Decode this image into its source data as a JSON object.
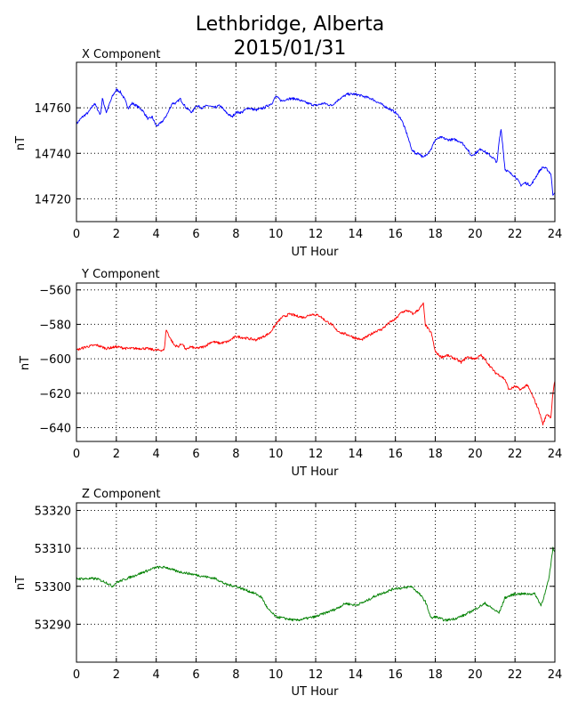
{
  "figure": {
    "title_line1": "Lethbridge, Alberta",
    "title_line2": "2015/01/31"
  },
  "chart_data": [
    {
      "type": "line",
      "subtitle": "X Component",
      "xlabel": "UT Hour",
      "ylabel": "nT",
      "xlim": [
        0,
        24
      ],
      "ylim": [
        14710,
        14780
      ],
      "xticks": [
        0,
        2,
        4,
        6,
        8,
        10,
        12,
        14,
        16,
        18,
        20,
        22,
        24
      ],
      "yticks": [
        14720,
        14740,
        14760
      ],
      "grid": true,
      "color": "#0000ff",
      "x": [
        0,
        0.3,
        0.6,
        0.9,
        1.2,
        1.3,
        1.5,
        1.8,
        2.0,
        2.2,
        2.4,
        2.6,
        2.8,
        3.0,
        3.3,
        3.6,
        3.8,
        4.0,
        4.2,
        4.4,
        4.6,
        4.8,
        5.0,
        5.2,
        5.5,
        5.8,
        6.0,
        6.3,
        6.6,
        6.9,
        7.2,
        7.5,
        7.8,
        8.0,
        8.3,
        8.6,
        9.0,
        9.4,
        9.8,
        10.0,
        10.3,
        10.6,
        11.0,
        11.3,
        11.6,
        12.0,
        12.4,
        12.8,
        13.2,
        13.6,
        14.0,
        14.4,
        14.8,
        15.2,
        15.6,
        16.0,
        16.3,
        16.6,
        16.8,
        17.0,
        17.2,
        17.4,
        17.6,
        17.8,
        18.0,
        18.3,
        18.6,
        19.0,
        19.3,
        19.6,
        19.8,
        20.0,
        20.3,
        20.6,
        20.9,
        21.1,
        21.2,
        21.3,
        21.5,
        21.8,
        22.0,
        22.3,
        22.5,
        22.8,
        23.0,
        23.2,
        23.4,
        23.6,
        23.8,
        23.9,
        24.0
      ],
      "y": [
        14753,
        14756,
        14758,
        14762,
        14757,
        14764,
        14758,
        14765,
        14768,
        14767,
        14764,
        14760,
        14762,
        14761,
        14759,
        14755,
        14756,
        14752,
        14753,
        14755,
        14758,
        14762,
        14762,
        14764,
        14760,
        14758,
        14761,
        14760,
        14761,
        14760,
        14761,
        14758,
        14756,
        14758,
        14758,
        14760,
        14759,
        14760,
        14762,
        14765,
        14763,
        14764,
        14764,
        14763,
        14762,
        14761,
        14762,
        14761,
        14764,
        14766,
        14766,
        14765,
        14764,
        14762,
        14760,
        14758,
        14755,
        14748,
        14742,
        14740,
        14740,
        14738,
        14740,
        14742,
        14746,
        14747,
        14746,
        14746,
        14745,
        14742,
        14739,
        14740,
        14742,
        14740,
        14738,
        14736,
        14745,
        14751,
        14733,
        14731,
        14730,
        14726,
        14727,
        14726,
        14729,
        14732,
        14734,
        14733,
        14731,
        14722,
        14723
      ]
    },
    {
      "type": "line",
      "subtitle": "Y Component",
      "xlabel": "UT Hour",
      "ylabel": "nT",
      "xlim": [
        0,
        24
      ],
      "ylim": [
        -648,
        -556
      ],
      "xticks": [
        0,
        2,
        4,
        6,
        8,
        10,
        12,
        14,
        16,
        18,
        20,
        22,
        24
      ],
      "yticks": [
        -560,
        -580,
        -600,
        -620,
        -640
      ],
      "grid": true,
      "color": "#ff0000",
      "x": [
        0,
        0.5,
        1.0,
        1.5,
        2.0,
        2.5,
        3.0,
        3.5,
        4.0,
        4.4,
        4.5,
        4.7,
        4.9,
        5.1,
        5.3,
        5.5,
        5.7,
        6.0,
        6.4,
        6.8,
        7.2,
        7.6,
        8.0,
        8.5,
        9.0,
        9.4,
        9.7,
        10.0,
        10.3,
        10.7,
        11.0,
        11.4,
        11.8,
        12.2,
        12.5,
        12.8,
        13.0,
        13.3,
        13.6,
        14.0,
        14.3,
        14.6,
        15.0,
        15.3,
        15.7,
        16.0,
        16.3,
        16.6,
        16.9,
        17.2,
        17.4,
        17.5,
        17.6,
        17.8,
        18.0,
        18.3,
        18.6,
        19.0,
        19.3,
        19.6,
        20.0,
        20.3,
        20.6,
        21.0,
        21.3,
        21.5,
        21.7,
        22.0,
        22.3,
        22.6,
        22.9,
        23.2,
        23.4,
        23.6,
        23.8,
        23.9,
        24.0
      ],
      "y": [
        -595,
        -593,
        -592,
        -594,
        -593,
        -594,
        -594,
        -594,
        -595,
        -595,
        -583,
        -588,
        -592,
        -593,
        -591,
        -595,
        -593,
        -594,
        -593,
        -590,
        -591,
        -590,
        -587,
        -588,
        -589,
        -587,
        -585,
        -580,
        -576,
        -574,
        -575,
        -576,
        -574,
        -575,
        -578,
        -580,
        -583,
        -585,
        -586,
        -588,
        -589,
        -587,
        -584,
        -583,
        -579,
        -577,
        -573,
        -572,
        -574,
        -571,
        -568,
        -580,
        -582,
        -585,
        -596,
        -599,
        -598,
        -600,
        -602,
        -599,
        -600,
        -598,
        -602,
        -608,
        -610,
        -612,
        -618,
        -616,
        -618,
        -615,
        -622,
        -630,
        -638,
        -632,
        -634,
        -620,
        -613
      ]
    },
    {
      "type": "line",
      "subtitle": "Z Component",
      "xlabel": "UT Hour",
      "ylabel": "nT",
      "xlim": [
        0,
        24
      ],
      "ylim": [
        53280,
        53322
      ],
      "xticks": [
        0,
        2,
        4,
        6,
        8,
        10,
        12,
        14,
        16,
        18,
        20,
        22,
        24
      ],
      "yticks": [
        53290,
        53300,
        53310,
        53320
      ],
      "grid": true,
      "color": "#008000",
      "x": [
        0,
        0.5,
        1.0,
        1.5,
        1.8,
        2.0,
        2.5,
        3.0,
        3.5,
        4.0,
        4.5,
        5.0,
        5.5,
        6.0,
        6.5,
        7.0,
        7.5,
        8.0,
        8.5,
        9.0,
        9.3,
        9.6,
        10.0,
        10.5,
        11.0,
        11.5,
        12.0,
        12.5,
        13.0,
        13.5,
        14.0,
        14.5,
        15.0,
        15.5,
        16.0,
        16.4,
        16.8,
        17.2,
        17.5,
        17.8,
        18.0,
        18.5,
        19.0,
        19.5,
        20.0,
        20.5,
        20.9,
        21.2,
        21.5,
        22.0,
        22.5,
        23.0,
        23.3,
        23.5,
        23.7,
        23.9,
        24.0
      ],
      "y": [
        53302,
        53302,
        53302,
        53301,
        53300,
        53301,
        53302,
        53303,
        53304,
        53305,
        53305,
        53304,
        53303.5,
        53303,
        53302.5,
        53302,
        53300.5,
        53300,
        53299,
        53298,
        53297,
        53294,
        53292,
        53291.5,
        53291,
        53291.5,
        53292,
        53293,
        53294,
        53295.5,
        53295,
        53296,
        53297.5,
        53298.5,
        53299.5,
        53299.5,
        53300,
        53298,
        53296,
        53291.5,
        53292,
        53291,
        53291.5,
        53292.5,
        53294,
        53295.5,
        53294,
        53293,
        53297,
        53298,
        53298,
        53298,
        53295,
        53298,
        53302,
        53310,
        53309
      ]
    }
  ]
}
